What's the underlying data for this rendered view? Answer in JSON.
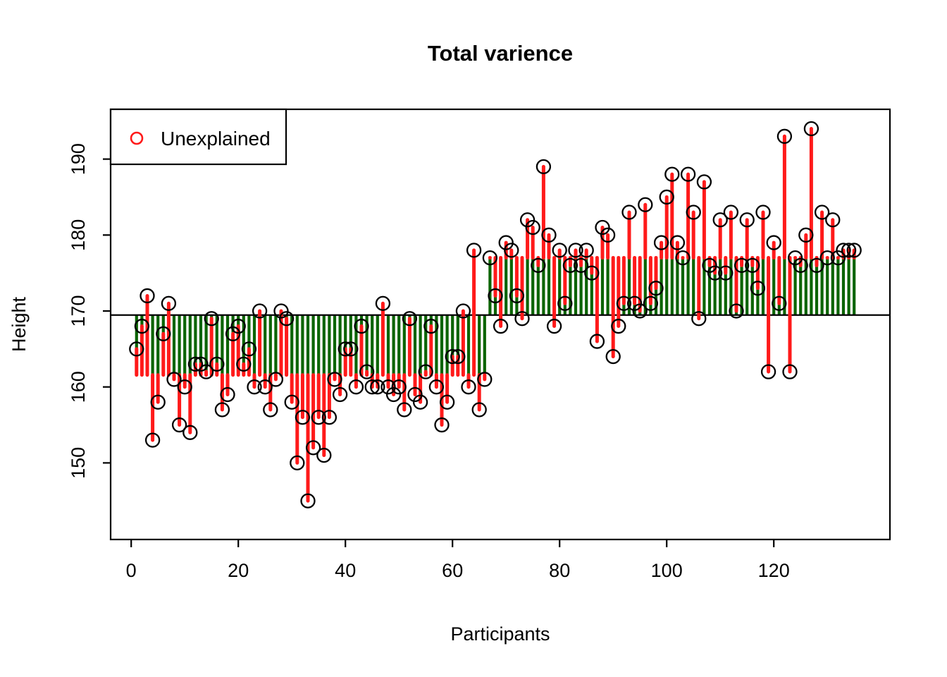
{
  "chart_data": {
    "type": "scatter",
    "title": "Total varience",
    "xlabel": "Participants",
    "ylabel": "Height",
    "x_ticks": [
      0,
      20,
      40,
      60,
      80,
      100,
      120
    ],
    "y_ticks": [
      150,
      160,
      170,
      180,
      190
    ],
    "xlim": [
      0,
      140
    ],
    "ylim": [
      144,
      195
    ],
    "legend": [
      {
        "label": "Unexplained",
        "marker": "o",
        "color": "#ff0000"
      }
    ],
    "legend_position": "top-left",
    "grand_mean": 169.47,
    "groups": [
      {
        "from": 1,
        "to": 66,
        "mean": 161.6
      },
      {
        "from": 67,
        "to": 135,
        "mean": 177.0
      }
    ],
    "series": [
      {
        "name": "Height per participant",
        "values": [
          165,
          168,
          172,
          153,
          158,
          167,
          171,
          161,
          155,
          160,
          154,
          163,
          163,
          162,
          169,
          163,
          157,
          159,
          167,
          168,
          163,
          165,
          160,
          170,
          160,
          157,
          161,
          170,
          169,
          158,
          150,
          156,
          145,
          152,
          156,
          151,
          156,
          161,
          159,
          165,
          165,
          160,
          168,
          162,
          160,
          160,
          171,
          160,
          159,
          160,
          157,
          169,
          159,
          158,
          162,
          168,
          160,
          155,
          158,
          164,
          164,
          170,
          160,
          178,
          157,
          161,
          177,
          172,
          168,
          179,
          178,
          172,
          169,
          182,
          181,
          176,
          189,
          180,
          168,
          178,
          171,
          176,
          178,
          176,
          178,
          175,
          166,
          181,
          180,
          164,
          168,
          171,
          183,
          171,
          170,
          184,
          171,
          173,
          179,
          185,
          188,
          179,
          177,
          188,
          183,
          169,
          187,
          176,
          175,
          182,
          175,
          183,
          170,
          176,
          182,
          176,
          173,
          183,
          162,
          179,
          171,
          193,
          162,
          177,
          176,
          180,
          194,
          176,
          183,
          177,
          182,
          177,
          178,
          178,
          178
        ]
      }
    ],
    "colors": {
      "unexplained_segment": "#ff1a1a",
      "explained_segment": "#0b6400",
      "point_stroke": "#000000",
      "mean_line": "#000000",
      "box": "#000000",
      "background": "#ffffff"
    },
    "grid": false
  }
}
